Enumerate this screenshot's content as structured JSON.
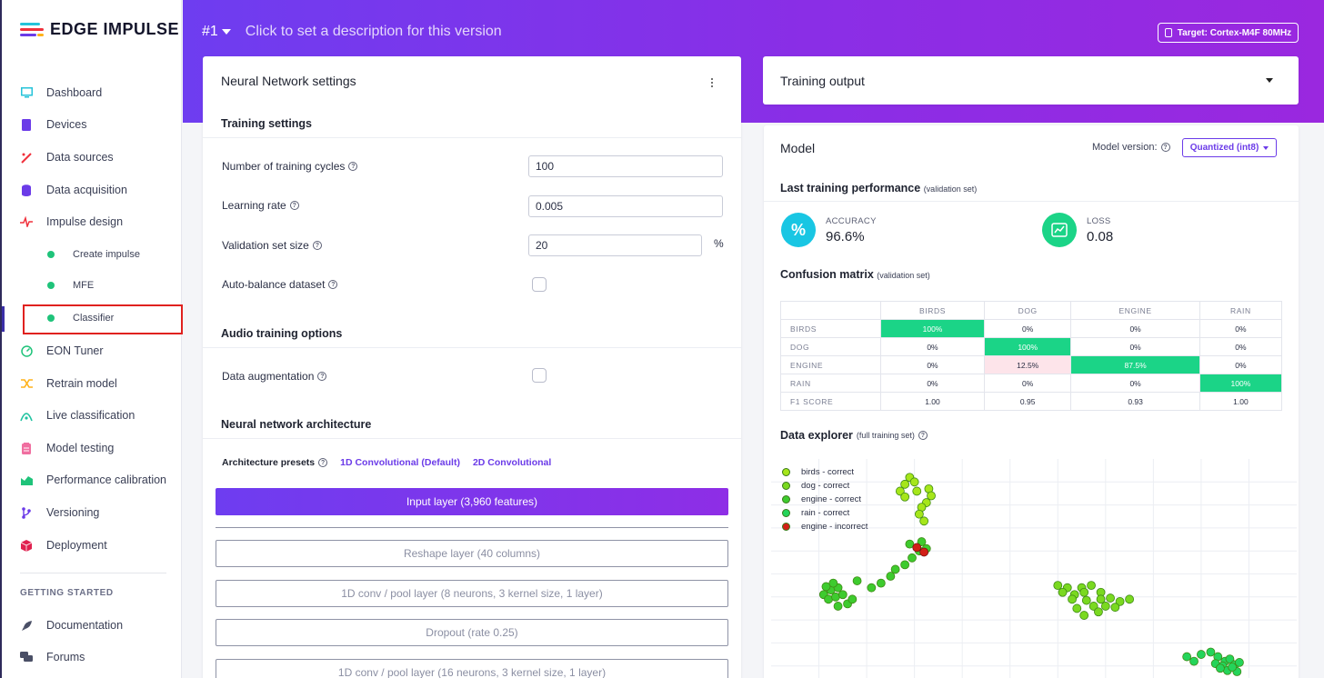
{
  "app": {
    "logo_text": "EDGE IMPULSE"
  },
  "sidebar": {
    "items": [
      {
        "label": "Dashboard",
        "icon": "monitor-icon"
      },
      {
        "label": "Devices",
        "icon": "device-icon"
      },
      {
        "label": "Data sources",
        "icon": "wand-icon"
      },
      {
        "label": "Data acquisition",
        "icon": "database-icon"
      },
      {
        "label": "Impulse design",
        "icon": "pulse-icon"
      },
      {
        "label": "EON Tuner",
        "icon": "tuner-icon"
      },
      {
        "label": "Retrain model",
        "icon": "shuffle-icon"
      },
      {
        "label": "Live classification",
        "icon": "live-icon"
      },
      {
        "label": "Model testing",
        "icon": "clipboard-icon"
      },
      {
        "label": "Performance calibration",
        "icon": "chart-icon"
      },
      {
        "label": "Versioning",
        "icon": "branch-icon"
      },
      {
        "label": "Deployment",
        "icon": "box-icon"
      },
      {
        "label": "Documentation",
        "icon": "rocket-icon"
      },
      {
        "label": "Forums",
        "icon": "forum-icon"
      }
    ],
    "sub_items": [
      "Create impulse",
      "MFE",
      "Classifier"
    ],
    "section_getting_started": "GETTING STARTED"
  },
  "header": {
    "version": "#1",
    "description_placeholder": "Click to set a description for this version",
    "target": "Target: Cortex-M4F 80MHz"
  },
  "nn_settings": {
    "title": "Neural Network settings",
    "training_settings_title": "Training settings",
    "training_cycles_label": "Number of training cycles",
    "training_cycles_value": "100",
    "learning_rate_label": "Learning rate",
    "learning_rate_value": "0.005",
    "validation_label": "Validation set size",
    "validation_value": "20",
    "validation_unit": "%",
    "auto_balance_label": "Auto-balance dataset",
    "audio_title": "Audio training options",
    "augmentation_label": "Data augmentation",
    "arch_title": "Neural network architecture",
    "presets_label": "Architecture presets",
    "preset_1d": "1D Convolutional (Default)",
    "preset_2d": "2D Convolutional",
    "layers": [
      "Input layer (3,960 features)",
      "Reshape layer (40 columns)",
      "1D conv / pool layer (8 neurons, 3 kernel size, 1 layer)",
      "Dropout (rate 0.25)",
      "1D conv / pool layer (16 neurons, 3 kernel size, 1 layer)"
    ]
  },
  "training_output": {
    "title": "Training output"
  },
  "model": {
    "title": "Model",
    "version_label": "Model version:",
    "version_value": "Quantized (int8)",
    "last_perf_title": "Last training performance",
    "last_perf_sub": "(validation set)",
    "accuracy_label": "ACCURACY",
    "accuracy_value": "96.6%",
    "loss_label": "LOSS",
    "loss_value": "0.08",
    "cm_title": "Confusion matrix",
    "cm_sub": "(validation set)",
    "explorer_title": "Data explorer",
    "explorer_sub": "(full training set)"
  },
  "confusion_matrix": {
    "columns": [
      "BIRDS",
      "DOG",
      "ENGINE",
      "RAIN"
    ],
    "rows": [
      {
        "label": "BIRDS",
        "cells": [
          "100%",
          "0%",
          "0%",
          "0%"
        ]
      },
      {
        "label": "DOG",
        "cells": [
          "0%",
          "100%",
          "0%",
          "0%"
        ]
      },
      {
        "label": "ENGINE",
        "cells": [
          "0%",
          "12.5%",
          "87.5%",
          "0%"
        ]
      },
      {
        "label": "RAIN",
        "cells": [
          "0%",
          "0%",
          "0%",
          "100%"
        ]
      },
      {
        "label": "F1 SCORE",
        "cells": [
          "1.00",
          "0.95",
          "0.93",
          "1.00"
        ]
      }
    ]
  },
  "chart_data": {
    "type": "scatter",
    "title": "Data explorer",
    "legend": [
      {
        "label": "birds - correct",
        "color": "#a6e61a"
      },
      {
        "label": "dog - correct",
        "color": "#7ad920"
      },
      {
        "label": "engine - correct",
        "color": "#3ecb2e"
      },
      {
        "label": "rain - correct",
        "color": "#24d45a"
      },
      {
        "label": "engine - incorrect",
        "color": "#d21f16"
      }
    ],
    "series": [
      {
        "name": "birds - correct",
        "points": [
          [
            2.9,
            8.2
          ],
          [
            3.0,
            8.0
          ],
          [
            2.8,
            7.9
          ],
          [
            3.05,
            7.6
          ],
          [
            3.3,
            7.7
          ],
          [
            3.35,
            7.4
          ],
          [
            2.7,
            7.6
          ],
          [
            2.8,
            7.35
          ],
          [
            3.25,
            7.1
          ],
          [
            3.15,
            6.9
          ],
          [
            3.1,
            6.6
          ],
          [
            3.2,
            6.3
          ]
        ]
      },
      {
        "name": "dog - correct",
        "points": [
          [
            6.0,
            3.5
          ],
          [
            6.2,
            3.4
          ],
          [
            6.5,
            3.4
          ],
          [
            6.7,
            3.5
          ],
          [
            6.1,
            3.2
          ],
          [
            6.35,
            3.1
          ],
          [
            6.55,
            3.2
          ],
          [
            6.9,
            3.2
          ],
          [
            6.3,
            2.9
          ],
          [
            6.6,
            2.85
          ],
          [
            6.9,
            2.9
          ],
          [
            7.1,
            2.95
          ],
          [
            7.3,
            2.8
          ],
          [
            7.5,
            2.9
          ],
          [
            6.4,
            2.5
          ],
          [
            6.75,
            2.6
          ],
          [
            7.0,
            2.6
          ],
          [
            7.2,
            2.55
          ],
          [
            6.55,
            2.2
          ],
          [
            6.85,
            2.35
          ]
        ]
      },
      {
        "name": "engine - correct",
        "points": [
          [
            1.1,
            3.1
          ],
          [
            1.25,
            3.3
          ],
          [
            1.4,
            3.4
          ],
          [
            1.2,
            2.9
          ],
          [
            1.35,
            3.0
          ],
          [
            1.5,
            3.1
          ],
          [
            1.6,
            2.7
          ],
          [
            1.4,
            2.6
          ],
          [
            1.7,
            2.9
          ],
          [
            2.1,
            3.4
          ],
          [
            2.3,
            3.6
          ],
          [
            2.5,
            3.9
          ],
          [
            2.6,
            4.2
          ],
          [
            2.8,
            4.4
          ],
          [
            2.95,
            4.7
          ],
          [
            3.1,
            5.0
          ],
          [
            3.25,
            5.1
          ],
          [
            3.15,
            5.4
          ],
          [
            2.9,
            5.3
          ],
          [
            1.3,
            3.6
          ],
          [
            1.15,
            3.45
          ],
          [
            1.8,
            3.7
          ]
        ]
      },
      {
        "name": "rain - correct",
        "points": [
          [
            8.7,
            0.4
          ],
          [
            8.85,
            0.2
          ],
          [
            9.0,
            0.5
          ],
          [
            9.2,
            0.6
          ],
          [
            9.35,
            0.4
          ],
          [
            9.3,
            0.1
          ],
          [
            9.5,
            0.2
          ],
          [
            9.45,
            0.0
          ],
          [
            9.6,
            0.3
          ],
          [
            9.7,
            0.05
          ],
          [
            9.55,
            -0.2
          ],
          [
            9.75,
            -0.25
          ],
          [
            9.8,
            0.15
          ],
          [
            9.4,
            -0.1
          ],
          [
            9.65,
            -0.05
          ]
        ]
      },
      {
        "name": "engine - incorrect",
        "points": [
          [
            3.05,
            5.15
          ],
          [
            3.2,
            4.95
          ]
        ]
      }
    ],
    "xlim": [
      0,
      11
    ],
    "ylim": [
      -1,
      9
    ],
    "grid": true
  }
}
